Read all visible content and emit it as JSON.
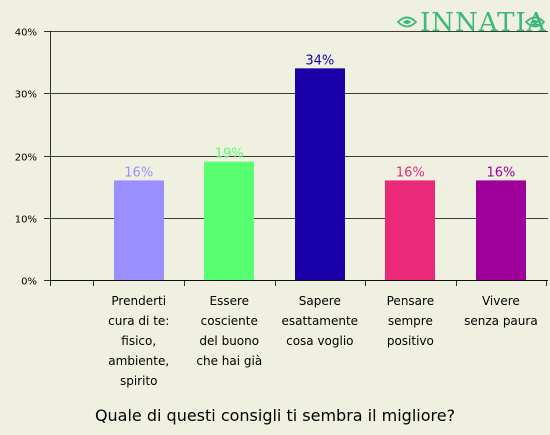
{
  "brand": {
    "logo_text": "Innatia",
    "logo_color": "#3cb878"
  },
  "chart_data": {
    "type": "bar",
    "title": "Quale di questi consigli ti sembra il migliore?",
    "categories": [
      [
        "Prenderti",
        "cura di te:",
        "fisico,",
        "ambiente,",
        "spirito"
      ],
      [
        "Essere",
        "cosciente",
        "del buono",
        "che hai già"
      ],
      [
        "Sapere",
        "esattamente",
        "cosa voglio"
      ],
      [
        "Pensare",
        "sempre",
        "positivo"
      ],
      [
        "Vivere",
        "senza paura"
      ]
    ],
    "values": [
      16,
      19,
      34,
      16,
      16
    ],
    "value_labels": [
      "16%",
      "19%",
      "34%",
      "16%",
      "16%"
    ],
    "colors": [
      "#9b8fff",
      "#58ff6e",
      "#1a00a8",
      "#ea2a78",
      "#a0009a"
    ],
    "label_colors": [
      "#9b8fff",
      "#58ff6e",
      "#1a00a8",
      "#ea2a78",
      "#a0009a"
    ],
    "y_ticks": [
      "0%",
      "10%",
      "20%",
      "30%",
      "40%"
    ],
    "ylim": [
      0,
      40
    ],
    "grid": true,
    "unit": "%"
  }
}
